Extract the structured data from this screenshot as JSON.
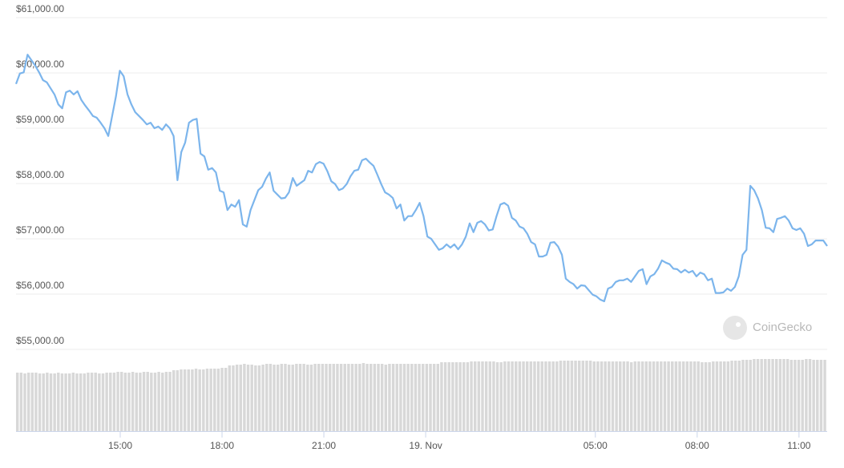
{
  "chart_data": {
    "type": "line",
    "color": "#7cb5ec",
    "ylim": [
      55000,
      61000
    ],
    "yticks": [
      {
        "value": 61000,
        "label": "$61,000.00"
      },
      {
        "value": 60000,
        "label": "$60,000.00"
      },
      {
        "value": 59000,
        "label": "$59,000.00"
      },
      {
        "value": 58000,
        "label": "$58,000.00"
      },
      {
        "value": 57000,
        "label": "$57,000.00"
      },
      {
        "value": 56000,
        "label": "$56,000.00"
      },
      {
        "value": 55000,
        "label": "$55,000.00"
      }
    ],
    "xlim": [
      11.93,
      35.83
    ],
    "xticks": [
      {
        "value": 15,
        "label": "15:00"
      },
      {
        "value": 18,
        "label": "18:00"
      },
      {
        "value": 21,
        "label": "21:00"
      },
      {
        "value": 24,
        "label": "19. Nov"
      },
      {
        "value": 29,
        "label": "05:00"
      },
      {
        "value": 32,
        "label": "08:00"
      },
      {
        "value": 35,
        "label": "11:00"
      }
    ],
    "grid": true,
    "values": [
      59800,
      59990,
      60010,
      60330,
      60230,
      60130,
      60010,
      59870,
      59830,
      59720,
      59610,
      59430,
      59360,
      59650,
      59680,
      59610,
      59670,
      59510,
      59410,
      59320,
      59220,
      59190,
      59100,
      59000,
      58860,
      59220,
      59580,
      60040,
      59940,
      59610,
      59430,
      59290,
      59220,
      59150,
      59070,
      59100,
      59000,
      59030,
      58970,
      59070,
      59000,
      58860,
      58060,
      58570,
      58740,
      59100,
      59150,
      59170,
      58540,
      58490,
      58250,
      58280,
      58200,
      57870,
      57840,
      57520,
      57620,
      57580,
      57700,
      57260,
      57220,
      57520,
      57700,
      57880,
      57940,
      58090,
      58200,
      57870,
      57800,
      57730,
      57740,
      57840,
      58100,
      57960,
      58010,
      58060,
      58230,
      58200,
      58350,
      58390,
      58360,
      58220,
      58040,
      57990,
      57880,
      57910,
      57990,
      58130,
      58230,
      58250,
      58420,
      58450,
      58380,
      58320,
      58160,
      57990,
      57840,
      57800,
      57740,
      57550,
      57620,
      57330,
      57410,
      57410,
      57520,
      57650,
      57410,
      57040,
      57000,
      56900,
      56800,
      56830,
      56900,
      56840,
      56900,
      56810,
      56900,
      57040,
      57280,
      57120,
      57290,
      57320,
      57260,
      57150,
      57170,
      57410,
      57620,
      57650,
      57600,
      57380,
      57330,
      57220,
      57190,
      57090,
      56940,
      56900,
      56680,
      56680,
      56710,
      56930,
      56940,
      56860,
      56710,
      56280,
      56220,
      56180,
      56100,
      56160,
      56150,
      56070,
      55990,
      55960,
      55900,
      55870,
      56100,
      56130,
      56220,
      56250,
      56250,
      56280,
      56220,
      56320,
      56420,
      56450,
      56180,
      56320,
      56360,
      56460,
      56610,
      56570,
      56540,
      56460,
      56450,
      56390,
      56440,
      56390,
      56420,
      56320,
      56390,
      56360,
      56250,
      56280,
      56020,
      56020,
      56030,
      56100,
      56060,
      56130,
      56320,
      56710,
      56800,
      57960,
      57880,
      57730,
      57520,
      57200,
      57190,
      57120,
      57360,
      57380,
      57410,
      57330,
      57190,
      57160,
      57190,
      57090,
      56870,
      56900,
      56970,
      56970,
      56970,
      56870
    ],
    "volume_color": "#d8d8d8",
    "volume_values": [
      73,
      73,
      72,
      73,
      73,
      73,
      72,
      72,
      73,
      72,
      72,
      73,
      72,
      72,
      72,
      73,
      72,
      72,
      72,
      73,
      73,
      73,
      72,
      72,
      73,
      73,
      73,
      74,
      74,
      73,
      73,
      74,
      73,
      73,
      74,
      74,
      73,
      73,
      74,
      73,
      74,
      74,
      76,
      76,
      77,
      77,
      77,
      77,
      78,
      77,
      77,
      78,
      78,
      78,
      78,
      79,
      79,
      82,
      82,
      83,
      83,
      84,
      83,
      83,
      82,
      82,
      83,
      84,
      84,
      83,
      83,
      84,
      84,
      83,
      83,
      84,
      84,
      84,
      83,
      83,
      84,
      84,
      84,
      84,
      84,
      84,
      84,
      84,
      84,
      84,
      84,
      84,
      84,
      85,
      84,
      84,
      84,
      84,
      84,
      83,
      84,
      84,
      84,
      84,
      84,
      84,
      84,
      84,
      84,
      84,
      84,
      84,
      84,
      84,
      86,
      86,
      86,
      86,
      86,
      86,
      86,
      86,
      87,
      87,
      87,
      87,
      87,
      87,
      87,
      86,
      86,
      87,
      87,
      87,
      87,
      87,
      87,
      87,
      87,
      87,
      87,
      87,
      87,
      87,
      87,
      87,
      88,
      88,
      88,
      88,
      88,
      88,
      88,
      88,
      88,
      87,
      87,
      87,
      87,
      87,
      87,
      87,
      87,
      87,
      87,
      86,
      87,
      87,
      87,
      87,
      87,
      87,
      87,
      87,
      87,
      87,
      87,
      87,
      87,
      87,
      87,
      87,
      87,
      87,
      86,
      86,
      86,
      87,
      87,
      87,
      87,
      87,
      88,
      88,
      88,
      89,
      89,
      89,
      90,
      90,
      90,
      90,
      90,
      90,
      90,
      90,
      90,
      90,
      89,
      89,
      89,
      89,
      90,
      90,
      89,
      89,
      89,
      89
    ],
    "watermark": "CoinGecko"
  }
}
